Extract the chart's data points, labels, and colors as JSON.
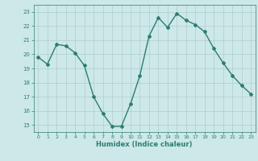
{
  "x": [
    0,
    1,
    2,
    3,
    4,
    5,
    6,
    7,
    8,
    9,
    10,
    11,
    12,
    13,
    14,
    15,
    16,
    17,
    18,
    19,
    20,
    21,
    22,
    23
  ],
  "y": [
    19.8,
    19.3,
    20.7,
    20.6,
    20.1,
    19.2,
    17.0,
    15.8,
    14.9,
    14.9,
    16.5,
    18.5,
    21.3,
    22.6,
    21.9,
    22.9,
    22.4,
    22.1,
    21.6,
    20.4,
    19.4,
    18.5,
    17.8,
    17.2
  ],
  "xlabel": "Humidex (Indice chaleur)",
  "xlim": [
    -0.5,
    23.5
  ],
  "ylim": [
    14.5,
    23.5
  ],
  "yticks": [
    15,
    16,
    17,
    18,
    19,
    20,
    21,
    22,
    23
  ],
  "xticks": [
    0,
    1,
    2,
    3,
    4,
    5,
    6,
    7,
    8,
    9,
    10,
    11,
    12,
    13,
    14,
    15,
    16,
    17,
    18,
    19,
    20,
    21,
    22,
    23
  ],
  "line_color": "#2e7d6e",
  "marker": "D",
  "marker_size": 2.0,
  "line_width": 1.0,
  "bg_color": "#cce8e8",
  "grid_color": "#b0cccc",
  "tick_color": "#2e7d6e",
  "label_color": "#2e7d6e"
}
